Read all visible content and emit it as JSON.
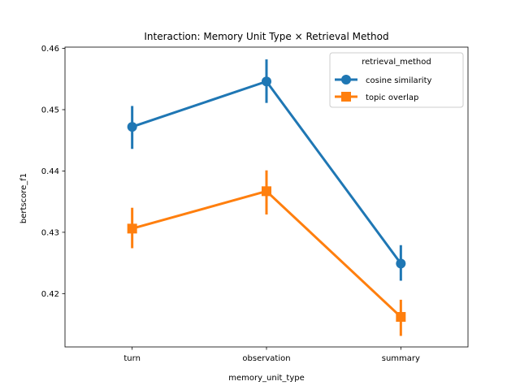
{
  "chart_data": {
    "type": "line",
    "title": "Interaction: Memory Unit Type × Retrieval Method",
    "xlabel": "memory_unit_type",
    "ylabel": "bertscore_f1",
    "categories": [
      "turn",
      "observation",
      "summary"
    ],
    "ylim": [
      0.4113,
      0.4602
    ],
    "yticks": [
      0.42,
      0.43,
      0.44,
      0.45,
      0.46
    ],
    "yticklabels": [
      "0.42",
      "0.43",
      "0.44",
      "0.45",
      "0.46"
    ],
    "grid": false,
    "legend": {
      "title": "retrieval_method",
      "placement": "top-right"
    },
    "series": [
      {
        "name": "cosine similarity",
        "marker": "circle",
        "color": "#1f77b4",
        "values": [
          0.4472,
          0.4546,
          0.4249
        ],
        "ci_low": [
          0.4436,
          0.4511,
          0.4221
        ],
        "ci_high": [
          0.4506,
          0.4582,
          0.4279
        ]
      },
      {
        "name": "topic overlap",
        "marker": "square",
        "color": "#ff7f0e",
        "values": [
          0.4306,
          0.4367,
          0.4162
        ],
        "ci_low": [
          0.4274,
          0.4329,
          0.4131
        ],
        "ci_high": [
          0.434,
          0.4401,
          0.419
        ]
      }
    ]
  }
}
